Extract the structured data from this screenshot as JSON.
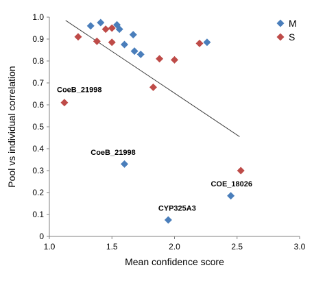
{
  "chart_data": {
    "type": "scatter",
    "title": "",
    "xlabel": "Mean confidence score",
    "ylabel": "Pool vs individual correlation",
    "xlim": [
      1.0,
      3.0
    ],
    "ylim": [
      0,
      1.0
    ],
    "x_ticks": [
      "1.0",
      "1.5",
      "2.0",
      "2.5",
      "3.0"
    ],
    "y_ticks": [
      "0",
      "0.1",
      "0.2",
      "0.3",
      "0.4",
      "0.5",
      "0.6",
      "0.7",
      "0.8",
      "0.9",
      "1.0"
    ],
    "grid": false,
    "legend": {
      "position": "top-right"
    },
    "series": [
      {
        "name": "M",
        "color": "#4a7ebb",
        "marker": "diamond",
        "points": [
          {
            "x": 1.33,
            "y": 0.96
          },
          {
            "x": 1.41,
            "y": 0.975
          },
          {
            "x": 1.54,
            "y": 0.965
          },
          {
            "x": 1.56,
            "y": 0.945
          },
          {
            "x": 1.6,
            "y": 0.875
          },
          {
            "x": 1.67,
            "y": 0.92
          },
          {
            "x": 1.68,
            "y": 0.845
          },
          {
            "x": 1.73,
            "y": 0.83
          },
          {
            "x": 2.26,
            "y": 0.885
          },
          {
            "x": 1.6,
            "y": 0.33
          },
          {
            "x": 1.95,
            "y": 0.075
          },
          {
            "x": 2.45,
            "y": 0.185
          }
        ]
      },
      {
        "name": "S",
        "color": "#be4b48",
        "marker": "diamond",
        "points": [
          {
            "x": 1.12,
            "y": 0.61
          },
          {
            "x": 1.23,
            "y": 0.91
          },
          {
            "x": 1.38,
            "y": 0.89
          },
          {
            "x": 1.45,
            "y": 0.945
          },
          {
            "x": 1.5,
            "y": 0.95
          },
          {
            "x": 1.5,
            "y": 0.885
          },
          {
            "x": 1.83,
            "y": 0.68
          },
          {
            "x": 1.88,
            "y": 0.81
          },
          {
            "x": 2.0,
            "y": 0.805
          },
          {
            "x": 2.2,
            "y": 0.88
          },
          {
            "x": 2.53,
            "y": 0.3
          }
        ]
      }
    ],
    "trendline": {
      "x": [
        1.13,
        2.52
      ],
      "y": [
        0.985,
        0.455
      ],
      "color": "#404040"
    },
    "annotations": [
      {
        "text": "CoeB_21998",
        "x": 1.0,
        "y": 0.67
      },
      {
        "text": "CoeB_21998",
        "x": 1.27,
        "y": 0.385
      },
      {
        "text": "COE_18026",
        "x": 2.23,
        "y": 0.24
      },
      {
        "text": "CYP325A3",
        "x": 1.81,
        "y": 0.13
      }
    ]
  }
}
